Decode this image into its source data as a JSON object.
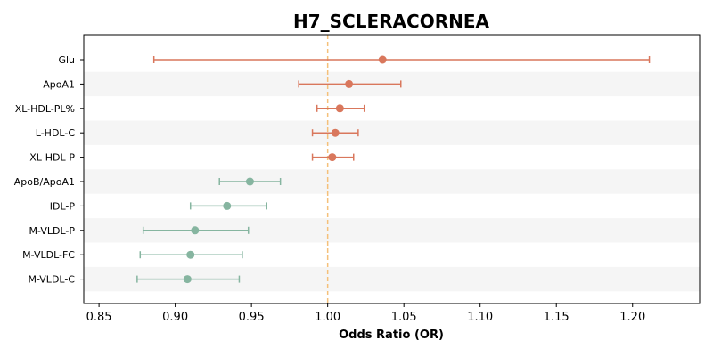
{
  "chart_data": {
    "type": "forest",
    "title": "H7_SCLERACORNEA",
    "xlabel": "Odds Ratio (OR)",
    "ylabel": "",
    "xlim": [
      0.84,
      1.244
    ],
    "xticks": [
      0.85,
      0.9,
      0.95,
      1.0,
      1.05,
      1.1,
      1.15,
      1.2
    ],
    "xtick_labels": [
      "0.85",
      "0.90",
      "0.95",
      "1.00",
      "1.05",
      "1.10",
      "1.15",
      "1.20"
    ],
    "reference_line": 1.0,
    "reference_line_color": "#f5c07a",
    "colors": {
      "risk": "#d9775c",
      "protective": "#86b5a0",
      "band": "#f5f5f5"
    },
    "grid": false,
    "rows": [
      {
        "label": "Glu",
        "or": 1.036,
        "lower": 0.886,
        "upper": 1.211,
        "group": "risk"
      },
      {
        "label": "ApoA1",
        "or": 1.014,
        "lower": 0.981,
        "upper": 1.048,
        "group": "risk"
      },
      {
        "label": "XL-HDL-PL%",
        "or": 1.008,
        "lower": 0.993,
        "upper": 1.024,
        "group": "risk"
      },
      {
        "label": "L-HDL-C",
        "or": 1.005,
        "lower": 0.99,
        "upper": 1.02,
        "group": "risk"
      },
      {
        "label": "XL-HDL-P",
        "or": 1.003,
        "lower": 0.99,
        "upper": 1.017,
        "group": "risk"
      },
      {
        "label": "ApoB/ApoA1",
        "or": 0.949,
        "lower": 0.929,
        "upper": 0.969,
        "group": "protective"
      },
      {
        "label": "IDL-P",
        "or": 0.934,
        "lower": 0.91,
        "upper": 0.96,
        "group": "protective"
      },
      {
        "label": "M-VLDL-P",
        "or": 0.913,
        "lower": 0.879,
        "upper": 0.948,
        "group": "protective"
      },
      {
        "label": "M-VLDL-FC",
        "or": 0.91,
        "lower": 0.877,
        "upper": 0.944,
        "group": "protective"
      },
      {
        "label": "M-VLDL-C",
        "or": 0.908,
        "lower": 0.875,
        "upper": 0.942,
        "group": "protective"
      }
    ]
  }
}
